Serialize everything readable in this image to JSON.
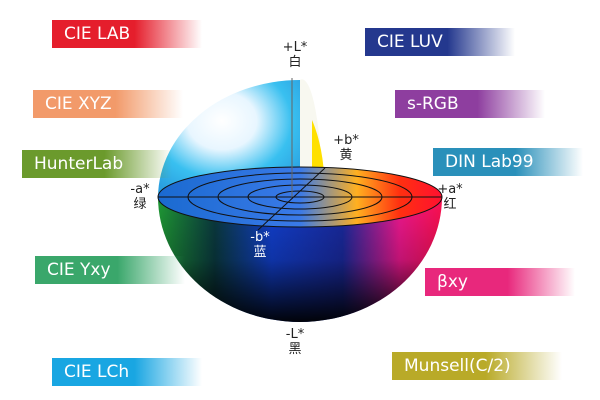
{
  "left_labels": [
    {
      "text": "CIE LAB",
      "color": "#e51e2c"
    },
    {
      "text": "CIE XYZ",
      "color": "#f29a6a"
    },
    {
      "text": "HunterLab",
      "color": "#6b9a2c"
    },
    {
      "text": "CIE Yxy",
      "color": "#3aa76b"
    },
    {
      "text": "CIE LCh",
      "color": "#19a6e2"
    }
  ],
  "right_labels": [
    {
      "text": "CIE LUV",
      "color": "#24388e"
    },
    {
      "text": "s-RGB",
      "color": "#8e3e9f"
    },
    {
      "text": "DIN Lab99",
      "color": "#2a90ba"
    },
    {
      "text": "βxy",
      "color": "#e8287c"
    },
    {
      "text": "Munsell(C/2)",
      "color": "#b9aa28"
    }
  ],
  "axes": {
    "plus_l": {
      "symbol": "+L*",
      "name": "白"
    },
    "minus_l": {
      "symbol": "-L*",
      "name": "黑"
    },
    "plus_a": {
      "symbol": "+a*",
      "name": "红"
    },
    "minus_a": {
      "symbol": "-a*",
      "name": "绿"
    },
    "plus_b": {
      "symbol": "+b*",
      "name": "黄"
    },
    "minus_b": {
      "symbol": "-b*",
      "name": "蓝"
    }
  }
}
